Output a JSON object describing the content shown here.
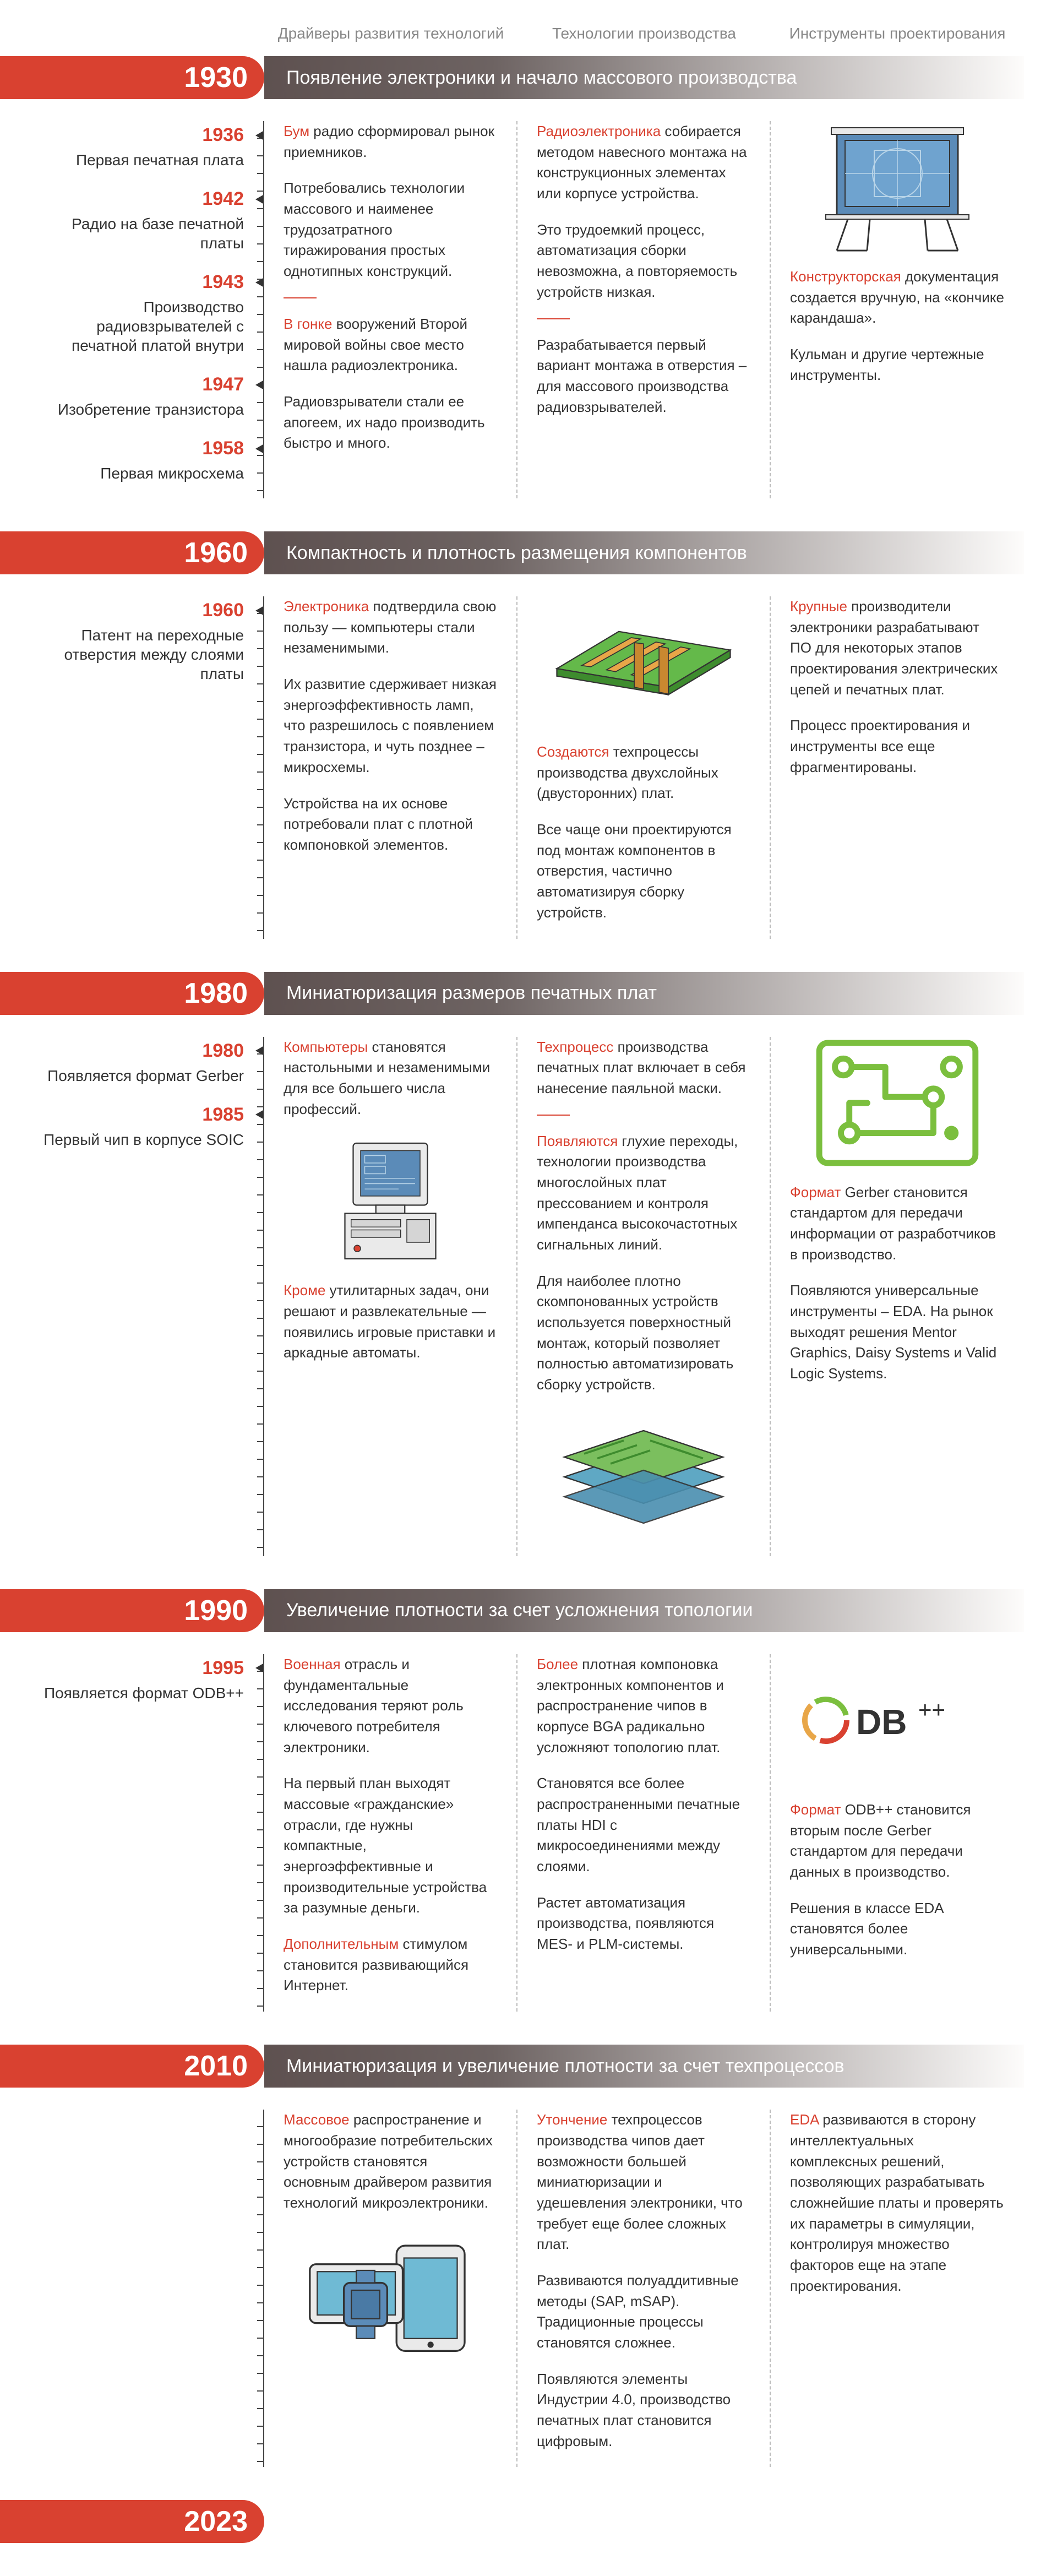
{
  "columns": {
    "c1": "Драйверы развития технологий",
    "c2": "Технологии производства",
    "c3": "Инструменты проектирования"
  },
  "colors": {
    "accent": "#d94130",
    "barFrom": "#5e5150",
    "text": "#333333"
  },
  "eras": [
    {
      "year": "1930",
      "title": "Появление электроники и начало массового производства",
      "side": [
        {
          "y": "1936",
          "t": "Первая печатная плата"
        },
        {
          "y": "1942",
          "t": "Радио на базе печатной платы"
        },
        {
          "y": "1943",
          "t": "Производство радиовзрывателей с печатной платой внутри"
        },
        {
          "y": "1947",
          "t": "Изобретение транзистора"
        },
        {
          "y": "1958",
          "t": "Первая микросхема"
        }
      ],
      "c1": [
        {
          "hl": "Бум",
          "t": " радио сформировал рынок приемников."
        },
        {
          "t": "Потребовались технологии массового и наименее трудозатратного тиражирования простых однотипных конструкций."
        },
        "sep",
        {
          "hl": "В гонке",
          "t": " вооружений Второй мировой войны свое место нашла радиоэлектроника."
        },
        {
          "t": "Радиовзрыватели стали ее апогеем, их надо производить быстро и много."
        }
      ],
      "c2": [
        {
          "hl": "Радиоэлектроника",
          "t": " собирается методом навесного монтажа на конструкционных элементах или корпусе устройства."
        },
        {
          "t": "Это трудоемкий процесс, автоматизация сборки невозможна, а повторяемость устройств низкая."
        },
        "sep",
        {
          "t": "Разрабатывается первый вариант монтажа в отверстия – для массового производства радиовзрывателей."
        }
      ],
      "c3": [
        "illus:drafting",
        {
          "hl": "Конструкторская",
          "t": " документация создается вручную, на «кончике карандаша»."
        },
        {
          "t": "Кульман и другие чертежные инструменты."
        }
      ]
    },
    {
      "year": "1960",
      "title": "Компактность и плотность размещения компонентов",
      "side": [
        {
          "y": "1960",
          "t": "Патент на переходные отверстия между слоями платы"
        }
      ],
      "c1": [
        {
          "hl": "Электроника",
          "t": " подтвердила свою пользу — компьютеры стали незаменимыми."
        },
        {
          "t": "Их развитие сдерживает низкая энергоэффективность ламп, что разрешилось с появлением транзистора, и чуть позднее – микросхемы."
        },
        {
          "t": "Устройства на их основе потребовали плат с плотной компоновкой элементов."
        }
      ],
      "c2": [
        "illus:pcb",
        {
          "hl": "Создаются",
          "t": " техпроцессы производства двухслойных (двусторонних) плат."
        },
        {
          "t": "Все чаще они проектируются под монтаж компонентов в отверстия, частично автоматизируя сборку устройств."
        }
      ],
      "c3": [
        {
          "hl": "Крупные",
          "t": " производители электроники разрабатывают ПО для некоторых этапов проектирования электрических цепей и печатных плат."
        },
        {
          "t": "Процесс проектирования и инструменты все еще фрагментированы."
        }
      ]
    },
    {
      "year": "1980",
      "title": "Миниатюризация размеров печатных плат",
      "side": [
        {
          "y": "1980",
          "t": "Появляется формат Gerber"
        },
        {
          "y": "1985",
          "t": "Первый чип в корпусе SOIC"
        }
      ],
      "c1": [
        {
          "hl": "Компьютеры",
          "t": " становятся настольными и незаменимыми для все большего числа профессий."
        },
        "illus:pc",
        {
          "hl": "Кроме",
          "t": " утилитарных задач, они решают и развлекательные — появились игровые приставки и аркадные автоматы."
        }
      ],
      "c2": [
        {
          "hl": "Техпроцесс",
          "t": " производства печатных плат включает в себя нанесение паяльной маски."
        },
        "sep",
        {
          "hl": "Появляются",
          "t": " глухие переходы, технологии производства многослойных плат прессованием и контроля импенданса высокочастотных сигнальных линий."
        },
        {
          "t": "Для наиболее плотно скомпонованных устройств используется поверхностный монтаж, который позволяет полностью автоматизировать сборку устройств."
        },
        "illus:layers"
      ],
      "c3": [
        "illus:trace",
        {
          "hl": "Формат",
          "t": " Gerber становится стандартом для передачи информации от разработчиков в производство."
        },
        {
          "t": "Появляются универсальные инструменты – EDA. На рынок выходят решения Mentor Graphics, Daisy Systems и Valid Logic Systems."
        }
      ]
    },
    {
      "year": "1990",
      "title": "Увеличение плотности за счет усложнения топологии",
      "side": [
        {
          "y": "1995",
          "t": "Появляется формат ODB++"
        }
      ],
      "c1": [
        {
          "hl": "Военная",
          "t": " отрасль и фундаментальные исследования теряют роль ключевого потребителя электроники."
        },
        {
          "t": "На первый план выходят массовые «гражданские» отрасли, где нужны компактные, энергоэффективные и производительные устройства за разумные деньги."
        },
        {
          "hl": "Дополнительным",
          "t": " стимулом становится развивающийся Интернет."
        }
      ],
      "c2": [
        {
          "hl": "Более",
          "t": " плотная компоновка электронных компонентов и распространение чипов в корпусе BGA радикально усложняют топологию плат."
        },
        {
          "t": "Становятся все более распространенными печатные платы HDI с микросоединениями между слоями."
        },
        {
          "t": "Растет автоматизация производства, появляются MES- и PLM-системы."
        }
      ],
      "c3": [
        "illus:odb",
        {
          "hl": "Формат",
          "t": " ODB++ становится вторым после Gerber стандартом для передачи данных в производство."
        },
        {
          "t": "Решения в классе EDA становятся более универсальными."
        }
      ]
    },
    {
      "year": "2010",
      "title": "Миниатюризация и увеличение плотности за счет техпроцессов",
      "side": [],
      "c1": [
        {
          "hl": "Массовое",
          "t": " распространение и многообразие потребительских устройств становятся основным драйвером развития технологий микроэлектроники."
        },
        "illus:devices"
      ],
      "c2": [
        {
          "hl": "Утончение",
          "t": " техпроцессов производства чипов дает возможности большей миниатюризации и удешевления электроники, что требует еще более сложных плат."
        },
        {
          "t": "Развиваются полуаддитивные методы (SAP, mSAP). Традиционные процессы становятся сложнее."
        },
        {
          "t": "Появляются элементы Индустрии 4.0, производство печатных плат становится цифровым."
        }
      ],
      "c3": [
        {
          "hl": "EDA",
          "t": " развиваются в сторону интеллектуальных комплексных решений, позволяющих разрабатывать сложнейшие платы и проверять их параметры в симуляции, контролируя множество факторов еще на этапе проектирования."
        }
      ]
    },
    {
      "year": "2023",
      "title": "",
      "side": [],
      "c1": [],
      "c2": [],
      "c3": []
    }
  ]
}
